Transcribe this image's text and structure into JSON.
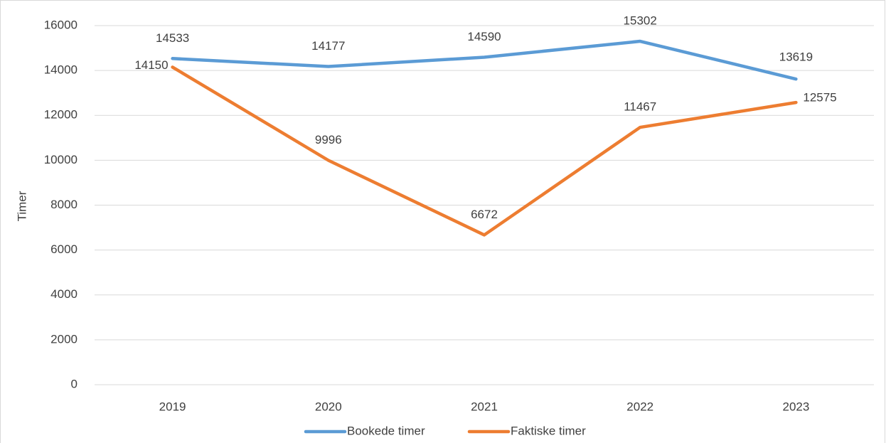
{
  "chart_data": {
    "type": "line",
    "y_label": "Timer",
    "categories": [
      "2019",
      "2020",
      "2021",
      "2022",
      "2023"
    ],
    "series": [
      {
        "name": "Bookede timer",
        "color": "#5b9bd5",
        "values": [
          14533,
          14177,
          14590,
          15302,
          13619
        ]
      },
      {
        "name": "Faktiske timer",
        "color": "#ed7d31",
        "values": [
          14150,
          9996,
          6672,
          11467,
          12575
        ]
      }
    ],
    "ylim": [
      0,
      16000
    ],
    "yticks": [
      0,
      2000,
      4000,
      6000,
      8000,
      10000,
      12000,
      14000,
      16000
    ],
    "grid": true,
    "legend": "bottom",
    "data_labels": true
  }
}
